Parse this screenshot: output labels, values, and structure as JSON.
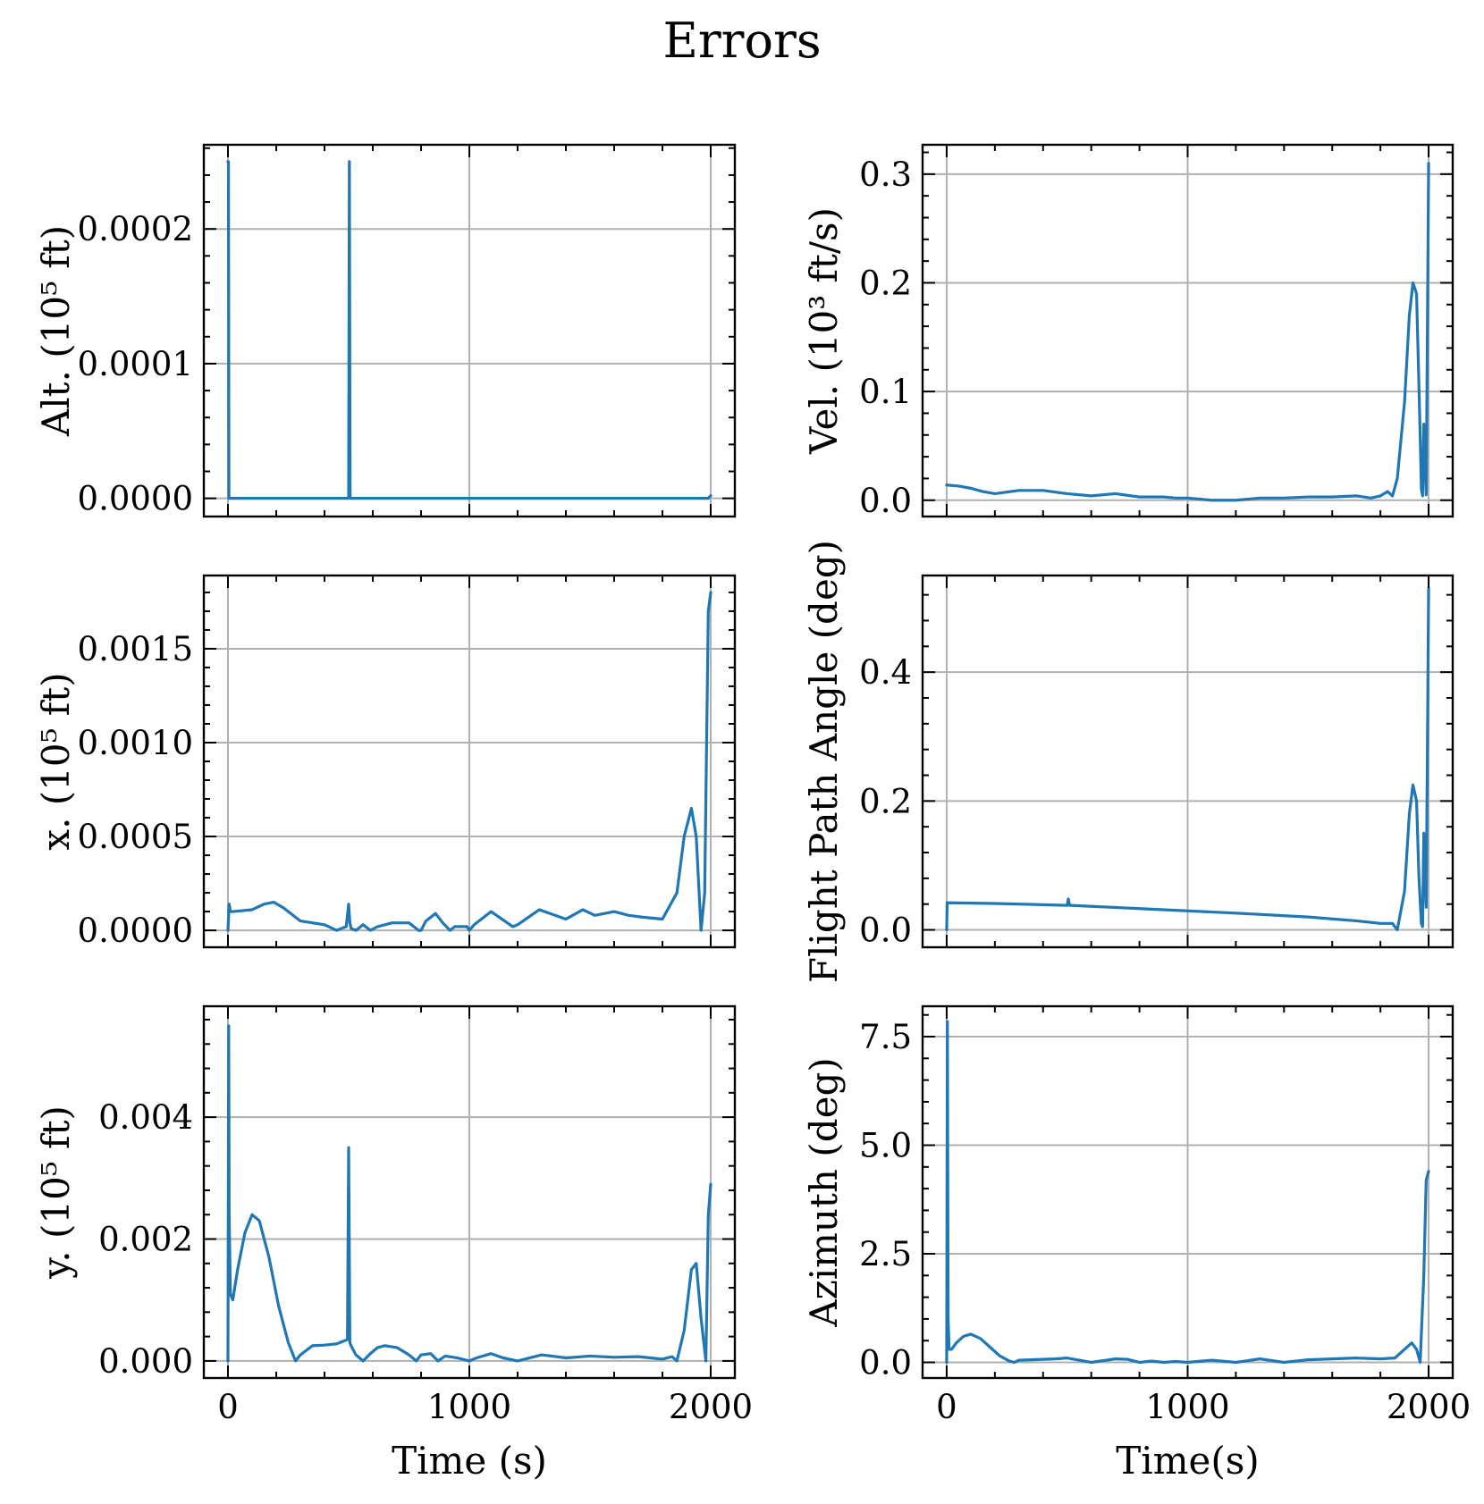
{
  "title": "Errors",
  "colors": {
    "series": "#1f77b4",
    "grid": "#b0b0b0"
  },
  "chart_data": [
    {
      "id": "alt",
      "type": "line",
      "ylabel": "Alt. (10⁵ ft)",
      "xlabel": "",
      "xlim": [
        -100,
        2100
      ],
      "ylim": [
        -1.35e-05,
        0.0002625
      ],
      "xticks": [
        0,
        1000,
        2000
      ],
      "xtick_labels": [
        "",
        "",
        ""
      ],
      "yticks": [
        0,
        0.0001,
        0.0002
      ],
      "ytick_labels": [
        "0.0000",
        "0.0001",
        "0.0002"
      ],
      "grid": true,
      "series": [
        {
          "x": [
            0,
            2,
            4,
            8,
            500,
            503,
            506,
            510,
            800,
            1200,
            1600,
            1990,
            2000
          ],
          "y": [
            0.00025,
            0.00025,
            0.0,
            0.0,
            0.0,
            0.00025,
            0.0,
            0.0,
            0.0,
            0.0,
            0.0,
            0.0,
            2e-06
          ]
        }
      ]
    },
    {
      "id": "vel",
      "type": "line",
      "ylabel": "Vel. (10³ ft/s)",
      "xlabel": "",
      "xlim": [
        -100,
        2100
      ],
      "ylim": [
        -0.015,
        0.327
      ],
      "xticks": [
        0,
        1000,
        2000
      ],
      "xtick_labels": [
        "",
        "",
        ""
      ],
      "yticks": [
        0,
        0.1,
        0.2,
        0.3
      ],
      "ytick_labels": [
        "0.0",
        "0.1",
        "0.2",
        "0.3"
      ],
      "grid": true,
      "series": [
        {
          "x": [
            0,
            50,
            100,
            150,
            200,
            300,
            400,
            500,
            600,
            700,
            800,
            900,
            950,
            1000,
            1100,
            1200,
            1300,
            1400,
            1500,
            1600,
            1700,
            1760,
            1800,
            1830,
            1850,
            1870,
            1900,
            1920,
            1935,
            1950,
            1965,
            1970,
            1975,
            1980,
            1990,
            2000
          ],
          "y": [
            0.014,
            0.013,
            0.011,
            0.008,
            0.006,
            0.009,
            0.009,
            0.006,
            0.004,
            0.006,
            0.003,
            0.003,
            0.002,
            0.002,
            0.0,
            0.0,
            0.002,
            0.002,
            0.003,
            0.003,
            0.004,
            0.002,
            0.004,
            0.008,
            0.004,
            0.02,
            0.09,
            0.17,
            0.2,
            0.19,
            0.06,
            0.01,
            0.004,
            0.07,
            0.005,
            0.31
          ]
        }
      ]
    },
    {
      "id": "x",
      "type": "line",
      "ylabel": "x. (10⁵ ft)",
      "xlabel": "",
      "xlim": [
        -100,
        2100
      ],
      "ylim": [
        -9e-05,
        0.00189
      ],
      "xticks": [
        0,
        1000,
        2000
      ],
      "xtick_labels": [
        "",
        "",
        ""
      ],
      "yticks": [
        0,
        0.0005,
        0.001,
        0.0015
      ],
      "ytick_labels": [
        "0.0000",
        "0.0005",
        "0.0010",
        "0.0015"
      ],
      "grid": true,
      "series": [
        {
          "x": [
            0,
            5,
            10,
            20,
            100,
            150,
            190,
            230,
            300,
            350,
            400,
            450,
            490,
            500,
            505,
            510,
            530,
            560,
            590,
            620,
            680,
            750,
            790,
            800,
            820,
            860,
            890,
            920,
            940,
            960,
            990,
            1000,
            1020,
            1090,
            1180,
            1200,
            1290,
            1400,
            1470,
            1520,
            1600,
            1660,
            1720,
            1800,
            1860,
            1890,
            1920,
            1940,
            1960,
            1975,
            1990,
            2000
          ],
          "y": [
            0.0,
            0.00014,
            0.0001,
            0.0001,
            0.00011,
            0.00014,
            0.00015,
            0.00012,
            5e-05,
            4e-05,
            3e-05,
            0.0,
            2e-05,
            0.00014,
            4e-05,
            1e-05,
            0.0,
            3e-05,
            0.0,
            2e-05,
            4e-05,
            4e-05,
            0.0,
            0.0,
            5e-05,
            9e-05,
            4e-05,
            0.0,
            2e-05,
            2e-05,
            2e-05,
            0.0,
            3e-05,
            0.0001,
            2e-05,
            3e-05,
            0.00011,
            6e-05,
            0.00011,
            8e-05,
            0.0001,
            8e-05,
            7e-05,
            6e-05,
            0.0002,
            0.0005,
            0.00065,
            0.0005,
            0.0,
            0.0002,
            0.0017,
            0.0018
          ]
        }
      ]
    },
    {
      "id": "fpa",
      "type": "line",
      "ylabel": "Flight Path Angle (deg)",
      "xlabel": "",
      "xlim": [
        -100,
        2100
      ],
      "ylim": [
        -0.027,
        0.55
      ],
      "xticks": [
        0,
        1000,
        2000
      ],
      "xtick_labels": [
        "",
        "",
        ""
      ],
      "yticks": [
        0,
        0.2,
        0.4
      ],
      "ytick_labels": [
        "0.0",
        "0.2",
        "0.4"
      ],
      "grid": true,
      "series": [
        {
          "x": [
            0,
            2,
            10,
            200,
            500,
            505,
            510,
            515,
            800,
            1200,
            1500,
            1700,
            1800,
            1850,
            1870,
            1900,
            1920,
            1935,
            1950,
            1960,
            1970,
            1975,
            1980,
            1990,
            2000
          ],
          "y": [
            0.0,
            0.042,
            0.042,
            0.041,
            0.038,
            0.048,
            0.038,
            0.038,
            0.033,
            0.026,
            0.02,
            0.014,
            0.01,
            0.01,
            0.0,
            0.06,
            0.18,
            0.225,
            0.2,
            0.08,
            0.01,
            0.005,
            0.15,
            0.035,
            0.53
          ]
        }
      ]
    },
    {
      "id": "y",
      "type": "line",
      "ylabel": "y. (10⁵ ft)",
      "xlabel": "Time (s)",
      "xlim": [
        -100,
        2100
      ],
      "ylim": [
        -0.00028,
        0.00582
      ],
      "xticks": [
        0,
        1000,
        2000
      ],
      "xtick_labels": [
        "0",
        "1000",
        "2000"
      ],
      "yticks": [
        0,
        0.002,
        0.004
      ],
      "ytick_labels": [
        "0.000",
        "0.002",
        "0.004"
      ],
      "grid": true,
      "series": [
        {
          "x": [
            0,
            3,
            5,
            10,
            20,
            40,
            70,
            100,
            130,
            170,
            210,
            250,
            280,
            300,
            350,
            400,
            450,
            495,
            500,
            505,
            510,
            530,
            560,
            590,
            620,
            650,
            700,
            750,
            780,
            800,
            840,
            870,
            900,
            950,
            1000,
            1030,
            1090,
            1140,
            1200,
            1300,
            1400,
            1500,
            1600,
            1700,
            1800,
            1840,
            1860,
            1890,
            1920,
            1940,
            1960,
            1980,
            1990,
            2000
          ],
          "y": [
            0.0,
            0.0055,
            0.0024,
            0.0011,
            0.001,
            0.0015,
            0.0021,
            0.0024,
            0.0023,
            0.0017,
            0.0009,
            0.0003,
            0.0,
            0.0001,
            0.00025,
            0.00026,
            0.00028,
            0.00035,
            0.0035,
            0.0003,
            0.00025,
            0.0001,
            0.0,
            0.00012,
            0.00022,
            0.00025,
            0.00022,
            0.0001,
            0.0,
            0.0001,
            0.00012,
            0.0,
            8e-05,
            5e-05,
            0.0,
            5e-05,
            0.00012,
            5e-05,
            0.0,
            0.0001,
            5e-05,
            8e-05,
            6e-05,
            7e-05,
            3e-05,
            7e-05,
            0.0,
            0.0005,
            0.0015,
            0.0016,
            0.0007,
            0.0,
            0.0024,
            0.0029
          ]
        }
      ]
    },
    {
      "id": "azimuth",
      "type": "line",
      "ylabel": "Azimuth (deg)",
      "xlabel": "Time(s)",
      "xlim": [
        -100,
        2100
      ],
      "ylim": [
        -0.36,
        8.2
      ],
      "xticks": [
        0,
        1000,
        2000
      ],
      "xtick_labels": [
        "0",
        "1000",
        "2000"
      ],
      "yticks": [
        0,
        2.5,
        5.0,
        7.5
      ],
      "ytick_labels": [
        "0.0",
        "2.5",
        "5.0",
        "7.5"
      ],
      "grid": true,
      "series": [
        {
          "x": [
            0,
            3,
            6,
            10,
            20,
            40,
            70,
            100,
            140,
            180,
            220,
            260,
            280,
            300,
            350,
            400,
            450,
            500,
            550,
            600,
            650,
            700,
            750,
            800,
            850,
            900,
            950,
            1000,
            1100,
            1200,
            1300,
            1400,
            1500,
            1600,
            1700,
            1800,
            1860,
            1900,
            1930,
            1950,
            1965,
            1980,
            1990,
            2000
          ],
          "y": [
            0.0,
            7.85,
            1.0,
            0.3,
            0.3,
            0.45,
            0.6,
            0.65,
            0.55,
            0.35,
            0.15,
            0.03,
            0.0,
            0.05,
            0.06,
            0.07,
            0.08,
            0.1,
            0.05,
            0.0,
            0.04,
            0.08,
            0.07,
            0.0,
            0.03,
            0.0,
            0.02,
            0.0,
            0.05,
            0.0,
            0.08,
            0.0,
            0.06,
            0.08,
            0.1,
            0.08,
            0.1,
            0.3,
            0.45,
            0.3,
            0.0,
            2.0,
            4.2,
            4.4
          ]
        }
      ]
    }
  ]
}
